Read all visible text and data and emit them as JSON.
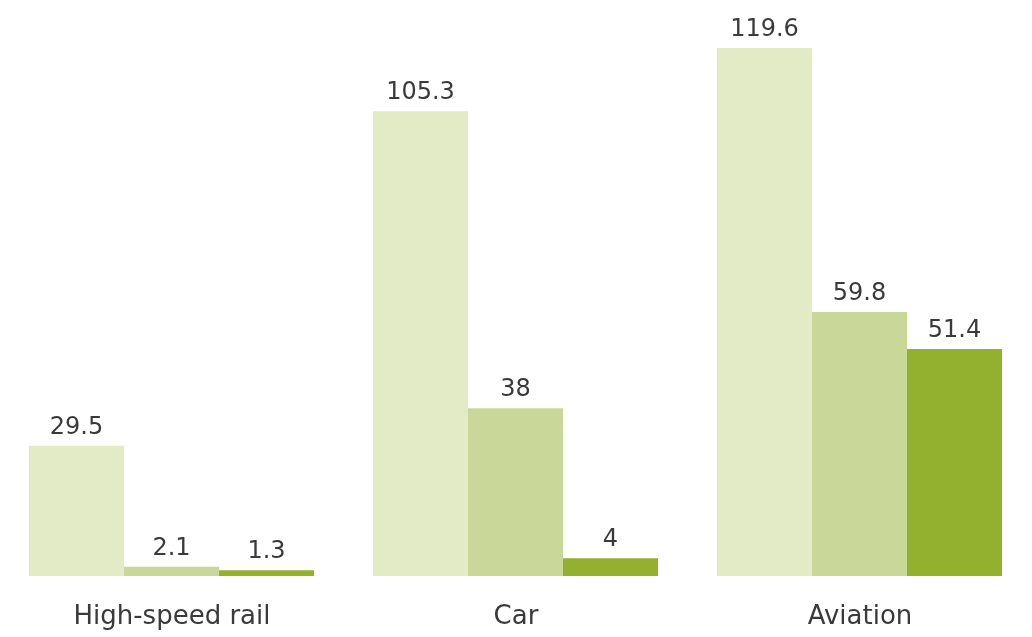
{
  "chart_data": {
    "type": "bar",
    "categories": [
      "High-speed rail",
      "Car",
      "Aviation"
    ],
    "series": [
      {
        "color": "#e3eac6",
        "values": [
          29.5,
          105.3,
          119.6
        ]
      },
      {
        "color": "#c9d898",
        "values": [
          2.1,
          38,
          59.8
        ]
      },
      {
        "color": "#93b12f",
        "values": [
          1.3,
          4,
          51.4
        ]
      }
    ],
    "data_labels": true,
    "grid": false,
    "legend": false
  }
}
